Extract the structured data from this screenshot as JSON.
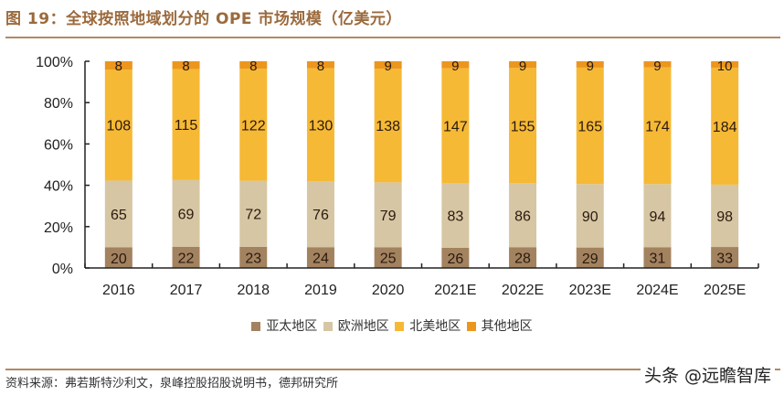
{
  "figure_title": "图 19：全球按照地域划分的 OPE 市场规模（亿美元）",
  "source": "资料来源：弗若斯特沙利文，泉峰控股招股说明书，德邦研究所",
  "watermark": "头条 @远瞻智库",
  "chart_data": {
    "type": "bar",
    "stacked": "percent",
    "title": "全球按照地域划分的 OPE 市场规模（亿美元）",
    "xlabel": "",
    "ylabel": "",
    "ylim": [
      0,
      100
    ],
    "yticks": [
      "0%",
      "20%",
      "40%",
      "60%",
      "80%",
      "100%"
    ],
    "categories": [
      "2016",
      "2017",
      "2018",
      "2019",
      "2020",
      "2021E",
      "2022E",
      "2023E",
      "2024E",
      "2025E"
    ],
    "legend_position": "bottom",
    "grid": false,
    "series": [
      {
        "name": "亚太地区",
        "color": "#a3825f",
        "values": [
          20,
          22,
          23,
          24,
          25,
          26,
          28,
          29,
          31,
          33
        ]
      },
      {
        "name": "欧洲地区",
        "color": "#d6c6a3",
        "values": [
          65,
          69,
          72,
          76,
          79,
          83,
          86,
          90,
          94,
          98
        ]
      },
      {
        "name": "北美地区",
        "color": "#f6b935",
        "values": [
          108,
          115,
          122,
          130,
          138,
          147,
          155,
          165,
          174,
          184
        ]
      },
      {
        "name": "其他地区",
        "color": "#ec961e",
        "values": [
          8,
          8,
          8,
          8,
          9,
          9,
          9,
          9,
          9,
          10
        ]
      }
    ]
  }
}
